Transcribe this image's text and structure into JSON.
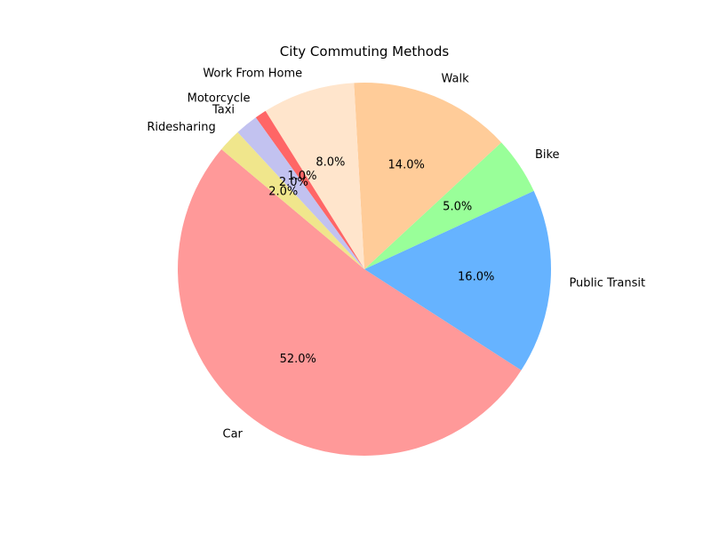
{
  "chart_data": {
    "type": "pie",
    "title": "City Commuting Methods",
    "start_angle_deg": 140,
    "direction": "counterclockwise",
    "slices": [
      {
        "label": "Car",
        "value": 52.0,
        "pct_text": "52.0%",
        "color": "#ff9999"
      },
      {
        "label": "Public Transit",
        "value": 16.0,
        "pct_text": "16.0%",
        "color": "#66b3ff"
      },
      {
        "label": "Bike",
        "value": 5.0,
        "pct_text": "5.0%",
        "color": "#99ff99"
      },
      {
        "label": "Walk",
        "value": 14.0,
        "pct_text": "14.0%",
        "color": "#ffcc99"
      },
      {
        "label": "Work From Home",
        "value": 8.0,
        "pct_text": "8.0%",
        "color": "#ffe5cc"
      },
      {
        "label": "Motorcycle",
        "value": 1.0,
        "pct_text": "1.0%",
        "color": "#ff6666"
      },
      {
        "label": "Taxi",
        "value": 2.0,
        "pct_text": "2.0%",
        "color": "#c2c2f0"
      },
      {
        "label": "Ridesharing",
        "value": 2.0,
        "pct_text": "2.0%",
        "color": "#f0e68c"
      }
    ]
  }
}
